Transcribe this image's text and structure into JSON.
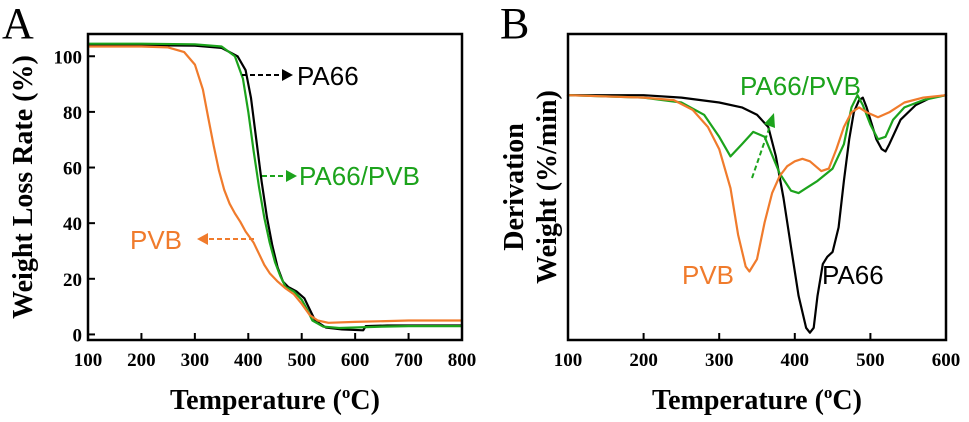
{
  "chart_data": [
    {
      "type": "line",
      "panel": "A",
      "xlabel": "Temperature (",
      "xlabel_sup": "o",
      "xlabel_end": "C)",
      "ylabel": "Weight Loss Rate (%)",
      "xlim": [
        100,
        800
      ],
      "ylim": [
        -2,
        108
      ],
      "x_ticks": [
        100,
        200,
        300,
        400,
        500,
        600,
        700,
        800
      ],
      "y_ticks": [
        0,
        20,
        40,
        60,
        80,
        100
      ],
      "series": [
        {
          "name": "PA66",
          "color": "#000000",
          "points": [
            [
              100,
              104
            ],
            [
              200,
              104
            ],
            [
              300,
              103.8
            ],
            [
              350,
              103
            ],
            [
              380,
              100
            ],
            [
              395,
              95
            ],
            [
              405,
              85
            ],
            [
              415,
              70
            ],
            [
              425,
              55
            ],
            [
              435,
              42
            ],
            [
              445,
              32
            ],
            [
              455,
              24
            ],
            [
              465,
              19
            ],
            [
              475,
              17
            ],
            [
              490,
              15.5
            ],
            [
              505,
              13
            ],
            [
              515,
              9
            ],
            [
              525,
              5
            ],
            [
              545,
              2.5
            ],
            [
              575,
              1.8
            ],
            [
              615,
              1.5
            ],
            [
              620,
              3
            ],
            [
              660,
              3.2
            ],
            [
              700,
              3.2
            ],
            [
              800,
              3.2
            ]
          ]
        },
        {
          "name": "PA66/PVB",
          "color": "#1ca31c",
          "points": [
            [
              100,
              104.5
            ],
            [
              200,
              104.5
            ],
            [
              300,
              104.3
            ],
            [
              350,
              103.5
            ],
            [
              375,
              100
            ],
            [
              390,
              92
            ],
            [
              400,
              80
            ],
            [
              410,
              66
            ],
            [
              420,
              53
            ],
            [
              430,
              42
            ],
            [
              440,
              33
            ],
            [
              450,
              26
            ],
            [
              460,
              21
            ],
            [
              470,
              17
            ],
            [
              485,
              15.5
            ],
            [
              500,
              12.5
            ],
            [
              510,
              9
            ],
            [
              520,
              5
            ],
            [
              540,
              2.8
            ],
            [
              570,
              2.3
            ],
            [
              600,
              2.5
            ],
            [
              650,
              2.8
            ],
            [
              700,
              3
            ],
            [
              800,
              3
            ]
          ]
        },
        {
          "name": "PVB",
          "color": "#f07b2c",
          "points": [
            [
              100,
              103.5
            ],
            [
              200,
              103.5
            ],
            [
              250,
              103.2
            ],
            [
              280,
              101.5
            ],
            [
              300,
              97
            ],
            [
              315,
              88
            ],
            [
              325,
              78
            ],
            [
              335,
              68
            ],
            [
              345,
              59
            ],
            [
              355,
              52
            ],
            [
              365,
              47
            ],
            [
              375,
              43.5
            ],
            [
              385,
              40.5
            ],
            [
              395,
              37
            ],
            [
              410,
              33
            ],
            [
              420,
              29
            ],
            [
              430,
              25
            ],
            [
              440,
              22
            ],
            [
              455,
              19
            ],
            [
              470,
              16.5
            ],
            [
              485,
              14.5
            ],
            [
              500,
              11
            ],
            [
              515,
              7
            ],
            [
              530,
              5
            ],
            [
              550,
              4.2
            ],
            [
              600,
              4.5
            ],
            [
              700,
              5
            ],
            [
              800,
              5
            ]
          ]
        }
      ]
    },
    {
      "type": "line",
      "panel": "B",
      "xlabel": "Temperature (",
      "xlabel_sup": "o",
      "xlabel_end": "C)",
      "ylabel_line1": "Derivation",
      "ylabel_line2": "Weight (%/min)",
      "xlim": [
        100,
        600
      ],
      "ylim": [
        -1,
        0.25
      ],
      "x_ticks": [
        100,
        200,
        300,
        400,
        500,
        600
      ],
      "series": [
        {
          "name": "PA66",
          "color": "#000000",
          "points": [
            [
              100,
              0
            ],
            [
              200,
              0
            ],
            [
              250,
              -0.01
            ],
            [
              300,
              -0.03
            ],
            [
              330,
              -0.05
            ],
            [
              350,
              -0.08
            ],
            [
              365,
              -0.13
            ],
            [
              375,
              -0.25
            ],
            [
              385,
              -0.42
            ],
            [
              395,
              -0.62
            ],
            [
              405,
              -0.82
            ],
            [
              415,
              -0.95
            ],
            [
              420,
              -0.97
            ],
            [
              425,
              -0.95
            ],
            [
              430,
              -0.82
            ],
            [
              437,
              -0.69
            ],
            [
              443,
              -0.66
            ],
            [
              450,
              -0.64
            ],
            [
              458,
              -0.54
            ],
            [
              465,
              -0.35
            ],
            [
              472,
              -0.18
            ],
            [
              478,
              -0.07
            ],
            [
              485,
              -0.02
            ],
            [
              490,
              -0.01
            ],
            [
              495,
              -0.05
            ],
            [
              500,
              -0.1
            ],
            [
              508,
              -0.18
            ],
            [
              515,
              -0.22
            ],
            [
              520,
              -0.23
            ],
            [
              525,
              -0.2
            ],
            [
              540,
              -0.1
            ],
            [
              560,
              -0.04
            ],
            [
              580,
              -0.01
            ],
            [
              600,
              0
            ]
          ]
        },
        {
          "name": "PA66/PVB",
          "color": "#1ca31c",
          "points": [
            [
              100,
              0
            ],
            [
              200,
              -0.01
            ],
            [
              250,
              -0.03
            ],
            [
              280,
              -0.08
            ],
            [
              300,
              -0.17
            ],
            [
              315,
              -0.25
            ],
            [
              330,
              -0.2
            ],
            [
              345,
              -0.15
            ],
            [
              360,
              -0.17
            ],
            [
              380,
              -0.32
            ],
            [
              395,
              -0.39
            ],
            [
              405,
              -0.4
            ],
            [
              415,
              -0.38
            ],
            [
              430,
              -0.35
            ],
            [
              450,
              -0.3
            ],
            [
              465,
              -0.2
            ],
            [
              475,
              -0.05
            ],
            [
              483,
              0
            ],
            [
              490,
              -0.04
            ],
            [
              500,
              -0.12
            ],
            [
              510,
              -0.18
            ],
            [
              520,
              -0.17
            ],
            [
              530,
              -0.1
            ],
            [
              545,
              -0.05
            ],
            [
              570,
              -0.02
            ],
            [
              600,
              0
            ]
          ]
        },
        {
          "name": "PVB",
          "color": "#f07b2c",
          "points": [
            [
              100,
              0
            ],
            [
              200,
              -0.01
            ],
            [
              240,
              -0.02
            ],
            [
              265,
              -0.06
            ],
            [
              285,
              -0.13
            ],
            [
              300,
              -0.22
            ],
            [
              315,
              -0.38
            ],
            [
              325,
              -0.57
            ],
            [
              335,
              -0.7
            ],
            [
              340,
              -0.72
            ],
            [
              350,
              -0.67
            ],
            [
              360,
              -0.52
            ],
            [
              370,
              -0.4
            ],
            [
              380,
              -0.33
            ],
            [
              390,
              -0.29
            ],
            [
              400,
              -0.27
            ],
            [
              410,
              -0.26
            ],
            [
              420,
              -0.27
            ],
            [
              435,
              -0.31
            ],
            [
              445,
              -0.3
            ],
            [
              455,
              -0.22
            ],
            [
              465,
              -0.13
            ],
            [
              475,
              -0.07
            ],
            [
              485,
              -0.05
            ],
            [
              495,
              -0.07
            ],
            [
              510,
              -0.09
            ],
            [
              525,
              -0.07
            ],
            [
              545,
              -0.03
            ],
            [
              570,
              -0.01
            ],
            [
              600,
              0
            ]
          ]
        }
      ]
    }
  ],
  "annotations": {
    "panel_a_letter": "A",
    "panel_b_letter": "B",
    "a_pa66": "PA66",
    "a_pa66pvb": "PA66/PVB",
    "a_pvb": "PVB",
    "b_pa66pvb": "PA66/PVB",
    "b_pvb": "PVB",
    "b_pa66": "PA66"
  }
}
